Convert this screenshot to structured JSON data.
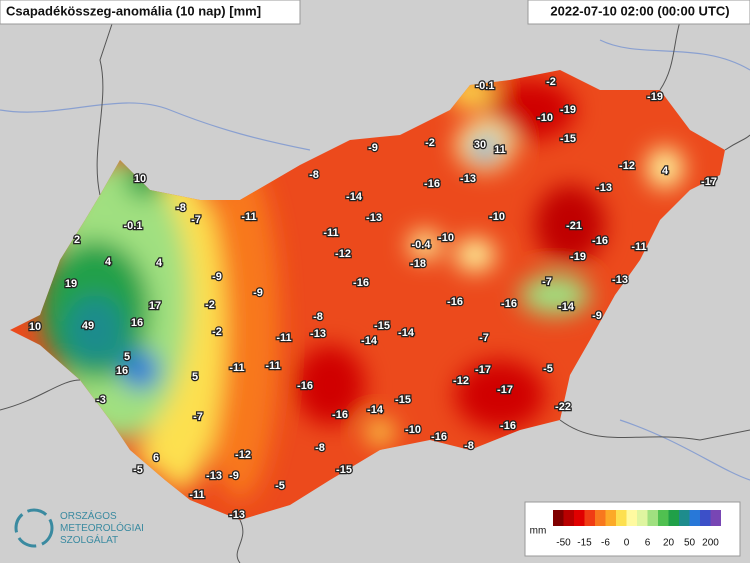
{
  "header": {
    "title": "Csapadékösszeg-anomália (10 nap) [mm]",
    "timestamp": "2022-07-10 02:00 (00:00 UTC)"
  },
  "stations": [
    -0.1,
    -2,
    -19,
    -10,
    -19,
    -15,
    -9,
    -2,
    30,
    11,
    -12,
    4,
    -17,
    -8,
    -16,
    -13,
    -13,
    10,
    -14,
    -8,
    -7,
    -11,
    -13,
    -10,
    -21,
    -0.1,
    -11,
    -0.4,
    -10,
    -16,
    -11,
    2,
    -12,
    -18,
    -19,
    4,
    4,
    -9,
    -16,
    -7,
    -13,
    19,
    -9,
    -2,
    -16,
    -16,
    17,
    -14,
    -9,
    49,
    16,
    -8,
    -15,
    -14,
    10,
    -2,
    -11,
    -13,
    -14,
    -7,
    5,
    -11,
    -11,
    -17,
    16,
    5,
    -12,
    -5,
    -16,
    -17,
    -3,
    -15,
    -14,
    -16,
    -7,
    -22,
    -10,
    -16,
    -16,
    6,
    -12,
    -8,
    -8,
    -5,
    -13,
    -9,
    -15,
    -11,
    -5,
    -13
  ],
  "legend": {
    "unit": "mm",
    "colors": [
      "#800000",
      "#b80000",
      "#e00000",
      "#f03c14",
      "#f8781e",
      "#fcaa28",
      "#fde050",
      "#fffaa0",
      "#dff5a0",
      "#a0e080",
      "#50c050",
      "#20a048",
      "#1e8c8c",
      "#2878d8",
      "#3c50c8",
      "#7846b4"
    ],
    "labels": [
      -50,
      -15,
      -6,
      0,
      6,
      20,
      50,
      200
    ]
  },
  "logo": {
    "line1": "ORSZÁGOS",
    "line2": "METEOROLÓGIAI",
    "line3": "SZOLGÁLAT"
  }
}
